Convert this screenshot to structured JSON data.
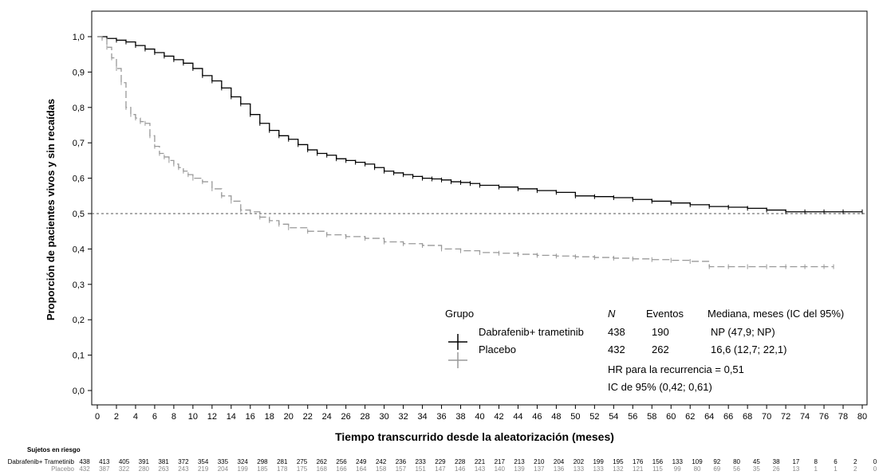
{
  "chart_data": {
    "type": "line",
    "xlabel": "Tiempo transcurrido desde la aleatorización (meses)",
    "ylabel": "Proporción de pacientes vivos y sin recaídas",
    "xlim": [
      0,
      80
    ],
    "ylim": [
      0,
      1
    ],
    "x_ticks": [
      "0",
      "2",
      "4",
      "6",
      "8",
      "10",
      "12",
      "14",
      "16",
      "18",
      "20",
      "22",
      "24",
      "26",
      "28",
      "30",
      "32",
      "34",
      "36",
      "38",
      "40",
      "42",
      "44",
      "46",
      "48",
      "50",
      "52",
      "54",
      "56",
      "58",
      "60",
      "62",
      "64",
      "66",
      "68",
      "70",
      "72",
      "74",
      "76",
      "78",
      "80"
    ],
    "y_ticks": [
      "0,0",
      "0,1",
      "0,2",
      "0,3",
      "0,4",
      "0,5",
      "0,6",
      "0,7",
      "0,8",
      "0,9",
      "1,0"
    ],
    "reference_line": 0.5,
    "grid": false,
    "series": [
      {
        "name": "Dabrafenib+ trametinib",
        "color": "#000000",
        "x": [
          0,
          1,
          2,
          3,
          4,
          5,
          6,
          7,
          8,
          9,
          10,
          11,
          12,
          13,
          14,
          15,
          16,
          17,
          18,
          19,
          20,
          21,
          22,
          23,
          24,
          25,
          26,
          27,
          28,
          29,
          30,
          31,
          32,
          33,
          34,
          35,
          36,
          37,
          38,
          39,
          40,
          42,
          44,
          46,
          48,
          50,
          52,
          54,
          56,
          58,
          60,
          62,
          64,
          66,
          68,
          70,
          72,
          74,
          76,
          78,
          80
        ],
        "y": [
          1.0,
          0.995,
          0.99,
          0.985,
          0.975,
          0.965,
          0.955,
          0.945,
          0.935,
          0.925,
          0.91,
          0.89,
          0.875,
          0.855,
          0.83,
          0.81,
          0.78,
          0.755,
          0.735,
          0.72,
          0.71,
          0.695,
          0.68,
          0.67,
          0.665,
          0.655,
          0.65,
          0.645,
          0.64,
          0.63,
          0.62,
          0.615,
          0.61,
          0.605,
          0.6,
          0.598,
          0.595,
          0.59,
          0.588,
          0.585,
          0.58,
          0.575,
          0.57,
          0.565,
          0.56,
          0.55,
          0.548,
          0.545,
          0.54,
          0.535,
          0.53,
          0.525,
          0.52,
          0.518,
          0.515,
          0.51,
          0.505,
          0.505,
          0.505,
          0.505,
          0.505
        ]
      },
      {
        "name": "Placebo",
        "color": "#999999",
        "x": [
          0,
          0.5,
          1,
          1.5,
          2,
          2.5,
          3,
          3.5,
          4,
          4.5,
          5,
          5.5,
          6,
          6.5,
          7,
          7.5,
          8,
          8.5,
          9,
          9.5,
          10,
          11,
          12,
          13,
          14,
          15,
          16,
          17,
          18,
          19,
          20,
          22,
          24,
          26,
          28,
          30,
          32,
          34,
          36,
          38,
          40,
          42,
          44,
          46,
          48,
          50,
          52,
          54,
          56,
          58,
          60,
          62,
          64,
          66,
          68,
          70,
          72,
          74,
          76,
          77
        ],
        "y": [
          1.0,
          0.995,
          0.97,
          0.94,
          0.91,
          0.87,
          0.8,
          0.78,
          0.77,
          0.76,
          0.755,
          0.72,
          0.69,
          0.67,
          0.66,
          0.65,
          0.64,
          0.63,
          0.62,
          0.61,
          0.6,
          0.59,
          0.57,
          0.55,
          0.535,
          0.51,
          0.505,
          0.49,
          0.48,
          0.47,
          0.46,
          0.45,
          0.44,
          0.435,
          0.43,
          0.42,
          0.415,
          0.41,
          0.4,
          0.395,
          0.39,
          0.388,
          0.385,
          0.382,
          0.38,
          0.378,
          0.376,
          0.374,
          0.372,
          0.37,
          0.368,
          0.365,
          0.35,
          0.35,
          0.35,
          0.35,
          0.35,
          0.35,
          0.35,
          0.35
        ]
      }
    ],
    "legend": {
      "position": "bottom-right",
      "header": {
        "group": "Grupo",
        "n": "N",
        "events": "Eventos",
        "median": "Mediana, meses (IC del 95%)"
      },
      "rows": [
        {
          "name": "Dabrafenib+ trametinib",
          "n": "438",
          "events": "190",
          "median": "NP (47,9; NP)"
        },
        {
          "name": "Placebo",
          "n": "432",
          "events": "262",
          "median": "16,6 (12,7; 22,1)"
        }
      ],
      "hr": "HR para la recurrencia = 0,51",
      "ci": "IC de 95% (0,42; 0,61)"
    },
    "risk_table": {
      "title": "Sujetos en riesgo",
      "rows": [
        {
          "label": "Dabrafenib+ Trametinib",
          "values": [
            "438",
            "413",
            "405",
            "391",
            "381",
            "372",
            "354",
            "335",
            "324",
            "298",
            "281",
            "275",
            "262",
            "256",
            "249",
            "242",
            "236",
            "233",
            "229",
            "228",
            "221",
            "217",
            "213",
            "210",
            "204",
            "202",
            "199",
            "195",
            "176",
            "156",
            "133",
            "109",
            "92",
            "80",
            "45",
            "38",
            "17",
            "8",
            "6",
            "2",
            "0"
          ]
        },
        {
          "label": "Placebo",
          "values": [
            "432",
            "387",
            "322",
            "280",
            "263",
            "243",
            "219",
            "204",
            "199",
            "185",
            "178",
            "175",
            "168",
            "166",
            "164",
            "158",
            "157",
            "151",
            "147",
            "146",
            "143",
            "140",
            "139",
            "137",
            "136",
            "133",
            "133",
            "132",
            "121",
            "115",
            "99",
            "80",
            "69",
            "56",
            "35",
            "26",
            "13",
            "1",
            "1",
            "2",
            "0"
          ]
        }
      ]
    }
  }
}
